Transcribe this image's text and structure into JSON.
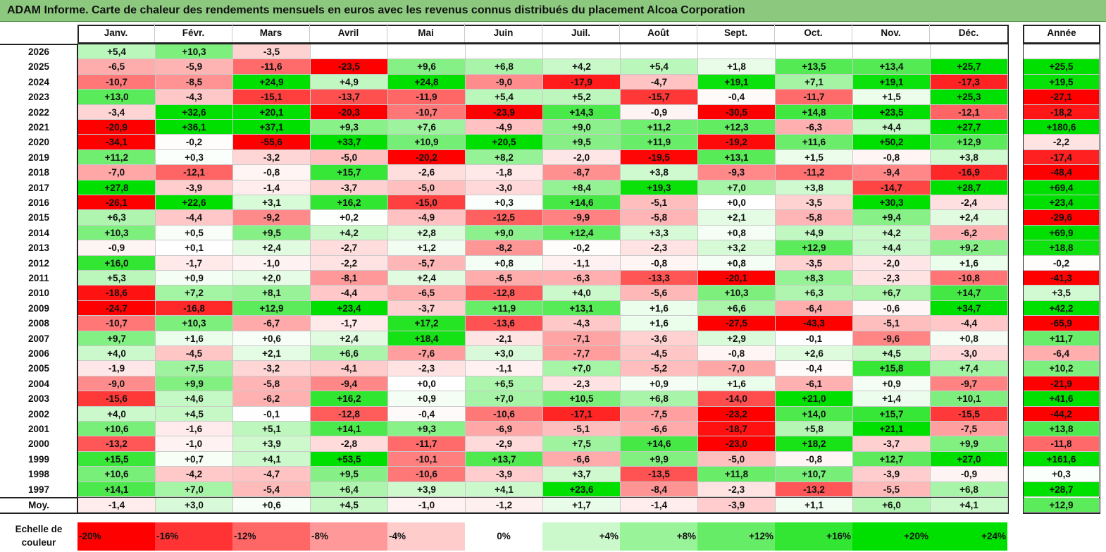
{
  "title": "ADAM Informe. Carte de chaleur des rendements mensuels en euros avec les revenus connus distribués du placement Alcoa Corporation",
  "chart_data": {
    "type": "heatmap",
    "months": [
      "Janv.",
      "Févr.",
      "Mars",
      "Avril",
      "Mai",
      "Juin",
      "Juil.",
      "Août",
      "Sept.",
      "Oct.",
      "Nov.",
      "Déc."
    ],
    "year_header": "Année",
    "rows": [
      {
        "year": "2026",
        "values": [
          "+5,4",
          "+10,3",
          "-3,5",
          "",
          "",
          "",
          "",
          "",
          "",
          "",
          "",
          ""
        ],
        "total": ""
      },
      {
        "year": "2025",
        "values": [
          "-6,5",
          "-5,9",
          "-11,6",
          "-23,5",
          "+9,6",
          "+6,8",
          "+4,2",
          "+5,4",
          "+1,8",
          "+13,5",
          "+13,4",
          "+25,7"
        ],
        "total": "+25,5"
      },
      {
        "year": "2024",
        "values": [
          "-10,7",
          "-8,5",
          "+24,9",
          "+4,9",
          "+24,8",
          "-9,0",
          "-17,9",
          "-4,7",
          "+19,1",
          "+7,1",
          "+19,1",
          "-17,3"
        ],
        "total": "+19,5"
      },
      {
        "year": "2023",
        "values": [
          "+13,0",
          "-4,3",
          "-15,1",
          "-13,7",
          "-11,9",
          "+5,4",
          "+5,2",
          "-15,7",
          "-0,4",
          "-11,7",
          "+1,5",
          "+25,3"
        ],
        "total": "-27,1"
      },
      {
        "year": "2022",
        "values": [
          "-3,4",
          "+32,6",
          "+20,1",
          "-20,3",
          "-10,7",
          "-23,9",
          "+14,3",
          "-0,9",
          "-30,5",
          "+14,8",
          "+23,5",
          "-12,1"
        ],
        "total": "-18,2"
      },
      {
        "year": "2021",
        "values": [
          "-20,9",
          "+36,1",
          "+37,1",
          "+9,3",
          "+7,6",
          "-4,9",
          "+9,0",
          "+11,2",
          "+12,3",
          "-6,3",
          "+4,4",
          "+27,7"
        ],
        "total": "+180,6"
      },
      {
        "year": "2020",
        "values": [
          "-34,1",
          "-0,2",
          "-55,6",
          "+33,7",
          "+10,9",
          "+20,5",
          "+9,5",
          "+11,9",
          "-19,2",
          "+11,6",
          "+50,2",
          "+12,9"
        ],
        "total": "-2,2"
      },
      {
        "year": "2019",
        "values": [
          "+11,2",
          "+0,3",
          "-3,2",
          "-5,0",
          "-20,2",
          "+8,2",
          "-2,0",
          "-19,5",
          "+13,1",
          "+1,5",
          "-0,8",
          "+3,8"
        ],
        "total": "-17,4"
      },
      {
        "year": "2018",
        "values": [
          "-7,0",
          "-12,1",
          "-0,8",
          "+15,7",
          "-2,6",
          "-1,8",
          "-8,7",
          "+3,8",
          "-9,3",
          "-11,2",
          "-9,4",
          "-16,9"
        ],
        "total": "-48,4"
      },
      {
        "year": "2017",
        "values": [
          "+27,8",
          "-3,9",
          "-1,4",
          "-3,7",
          "-5,0",
          "-3,0",
          "+8,4",
          "+19,3",
          "+7,0",
          "+3,8",
          "-14,7",
          "+28,7"
        ],
        "total": "+69,4"
      },
      {
        "year": "2016",
        "values": [
          "-26,1",
          "+22,6",
          "+3,1",
          "+16,2",
          "-15,0",
          "+0,3",
          "+14,6",
          "-5,1",
          "+0,0",
          "-3,5",
          "+30,3",
          "-2,4"
        ],
        "total": "+23,4"
      },
      {
        "year": "2015",
        "values": [
          "+6,3",
          "-4,4",
          "-9,2",
          "+0,2",
          "-4,9",
          "-12,5",
          "-9,9",
          "-5,8",
          "+2,1",
          "-5,8",
          "+9,4",
          "+2,4"
        ],
        "total": "-29,6"
      },
      {
        "year": "2014",
        "values": [
          "+10,3",
          "+0,5",
          "+9,5",
          "+4,2",
          "+2,8",
          "+9,0",
          "+12,4",
          "+3,3",
          "+0,8",
          "+4,9",
          "+4,2",
          "-6,2"
        ],
        "total": "+69,9"
      },
      {
        "year": "2013",
        "values": [
          "-0,9",
          "+0,1",
          "+2,4",
          "-2,7",
          "+1,2",
          "-8,2",
          "-0,2",
          "-2,3",
          "+3,2",
          "+12,9",
          "+4,4",
          "+9,2"
        ],
        "total": "+18,8"
      },
      {
        "year": "2012",
        "values": [
          "+16,0",
          "-1,7",
          "-1,0",
          "-2,2",
          "-5,7",
          "+0,8",
          "-1,1",
          "-0,8",
          "+0,8",
          "-3,5",
          "-2,0",
          "+1,6"
        ],
        "total": "-0,2"
      },
      {
        "year": "2011",
        "values": [
          "+5,3",
          "+0,9",
          "+2,0",
          "-8,1",
          "+2,4",
          "-6,5",
          "-6,3",
          "-13,3",
          "-20,1",
          "+8,3",
          "-2,3",
          "-10,8"
        ],
        "total": "-41,3"
      },
      {
        "year": "2010",
        "values": [
          "-18,6",
          "+7,2",
          "+8,1",
          "-4,4",
          "-6,5",
          "-12,8",
          "+4,0",
          "-5,6",
          "+10,3",
          "+6,3",
          "+6,7",
          "+14,7"
        ],
        "total": "+3,5"
      },
      {
        "year": "2009",
        "values": [
          "-24,7",
          "-16,8",
          "+12,9",
          "+23,4",
          "-3,7",
          "+11,9",
          "+13,1",
          "+1,6",
          "+6,6",
          "-6,4",
          "-0,6",
          "+34,7"
        ],
        "total": "+42,2"
      },
      {
        "year": "2008",
        "values": [
          "-10,7",
          "+10,3",
          "-6,7",
          "-1,7",
          "+17,2",
          "-13,6",
          "-4,3",
          "+1,6",
          "-27,5",
          "-43,3",
          "-5,1",
          "-4,4"
        ],
        "total": "-65,9"
      },
      {
        "year": "2007",
        "values": [
          "+9,7",
          "+1,6",
          "+0,6",
          "+2,4",
          "+18,4",
          "-2,1",
          "-7,1",
          "-3,6",
          "+2,9",
          "-0,1",
          "-9,6",
          "+0,8"
        ],
        "total": "+11,7"
      },
      {
        "year": "2006",
        "values": [
          "+4,0",
          "-4,5",
          "+2,1",
          "+6,6",
          "-7,6",
          "+3,0",
          "-7,7",
          "-4,5",
          "-0,8",
          "+2,6",
          "+4,5",
          "-3,0"
        ],
        "total": "-6,4"
      },
      {
        "year": "2005",
        "values": [
          "-1,9",
          "+7,5",
          "-3,2",
          "-4,1",
          "-2,3",
          "-1,1",
          "+7,0",
          "-5,2",
          "-7,0",
          "-0,4",
          "+15,8",
          "+7,4"
        ],
        "total": "+10,2"
      },
      {
        "year": "2004",
        "values": [
          "-9,0",
          "+9,9",
          "-5,8",
          "-9,4",
          "+0,0",
          "+6,5",
          "-2,3",
          "+0,9",
          "+1,6",
          "-6,1",
          "+0,9",
          "-9,7"
        ],
        "total": "-21,9"
      },
      {
        "year": "2003",
        "values": [
          "-15,6",
          "+4,6",
          "-6,2",
          "+16,2",
          "+0,9",
          "+7,0",
          "+10,5",
          "+6,8",
          "-14,0",
          "+21,0",
          "+1,4",
          "+10,1"
        ],
        "total": "+41,6"
      },
      {
        "year": "2002",
        "values": [
          "+4,0",
          "+4,5",
          "-0,1",
          "-12,8",
          "-0,4",
          "-10,6",
          "-17,1",
          "-7,5",
          "-23,2",
          "+14,0",
          "+15,7",
          "-15,5"
        ],
        "total": "-44,2"
      },
      {
        "year": "2001",
        "values": [
          "+10,6",
          "-1,6",
          "+5,1",
          "+14,1",
          "+9,3",
          "-6,9",
          "-5,1",
          "-6,6",
          "-18,7",
          "+5,8",
          "+21,1",
          "-7,5"
        ],
        "total": "+13,8"
      },
      {
        "year": "2000",
        "values": [
          "-13,2",
          "-1,0",
          "+3,9",
          "-2,8",
          "-11,7",
          "-2,9",
          "+7,5",
          "+14,6",
          "-23,0",
          "+18,2",
          "-3,7",
          "+9,9"
        ],
        "total": "-11,8"
      },
      {
        "year": "1999",
        "values": [
          "+15,5",
          "+0,7",
          "+4,1",
          "+53,5",
          "-10,1",
          "+13,7",
          "-6,6",
          "+9,9",
          "-5,0",
          "-0,8",
          "+12,7",
          "+27,0"
        ],
        "total": "+161,6"
      },
      {
        "year": "1998",
        "values": [
          "+10,6",
          "-4,2",
          "-4,7",
          "+9,5",
          "-10,6",
          "-3,9",
          "+3,7",
          "-13,5",
          "+11,8",
          "+10,7",
          "-3,9",
          "-0,9"
        ],
        "total": "+0,3"
      },
      {
        "year": "1997",
        "values": [
          "+14,1",
          "+7,0",
          "-5,4",
          "+6,4",
          "+3,9",
          "+4,1",
          "+23,6",
          "-8,4",
          "-2,3",
          "-13,2",
          "-5,5",
          "+6,8"
        ],
        "total": "+28,7"
      }
    ],
    "average": {
      "label": "Moy.",
      "values": [
        "-1,4",
        "+3,0",
        "+0,6",
        "+4,5",
        "-1,0",
        "-1,2",
        "+1,7",
        "-1,4",
        "-3,9",
        "+1,1",
        "+6,0",
        "+4,1"
      ],
      "total": "+12,9"
    },
    "scale": {
      "label": "Echelle de couleur",
      "steps": [
        "-20%",
        "-16%",
        "-12%",
        "-8%",
        "-4%",
        "0%",
        "+4%",
        "+8%",
        "+12%",
        "+16%",
        "+20%",
        "+24%"
      ],
      "values": [
        -20,
        -16,
        -12,
        -8,
        -4,
        0,
        4,
        8,
        12,
        16,
        20,
        24
      ]
    },
    "colors": {
      "negative_max": "#ff0000",
      "neutral": "#ffffff",
      "positive_max": "#00e000"
    }
  }
}
